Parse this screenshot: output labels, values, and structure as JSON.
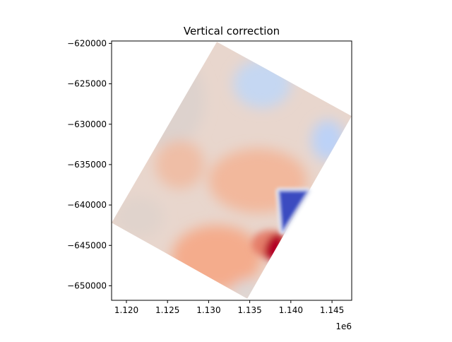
{
  "chart_data": {
    "type": "heatmap",
    "title": "Vertical correction",
    "xlabel": "",
    "ylabel": "",
    "x_offset_label": "1e6",
    "xlim": [
      1.1182,
      1.1474
    ],
    "ylim": [
      -651800,
      -619700
    ],
    "xticks": [
      {
        "value": 1.12,
        "label": "1.120"
      },
      {
        "value": 1.125,
        "label": "1.125"
      },
      {
        "value": 1.13,
        "label": "1.130"
      },
      {
        "value": 1.135,
        "label": "1.135"
      },
      {
        "value": 1.14,
        "label": "1.140"
      },
      {
        "value": 1.145,
        "label": "1.145"
      }
    ],
    "yticks": [
      {
        "value": -620000,
        "label": "−620000"
      },
      {
        "value": -625000,
        "label": "−625000"
      },
      {
        "value": -630000,
        "label": "−630000"
      },
      {
        "value": -635000,
        "label": "−635000"
      },
      {
        "value": -640000,
        "label": "−640000"
      },
      {
        "value": -645000,
        "label": "−645000"
      },
      {
        "value": -650000,
        "label": "−650000"
      }
    ],
    "colormap": "coolwarm",
    "grid": false,
    "footprint_corners": [
      [
        1.131,
        -619800
      ],
      [
        1.1474,
        -629000
      ],
      [
        1.1347,
        -651600
      ],
      [
        1.1182,
        -642200
      ]
    ],
    "regions": [
      {
        "name": "northwest-neutral",
        "x": 1.125,
        "y": -627000,
        "rx": 0.0045,
        "ry": 6000,
        "color": "#ddd2cd"
      },
      {
        "name": "upper-cool",
        "x": 1.1365,
        "y": -625000,
        "rx": 0.0035,
        "ry": 3000,
        "color": "#c5d7f2"
      },
      {
        "name": "east-cool",
        "x": 1.1445,
        "y": -632000,
        "rx": 0.002,
        "ry": 2500,
        "color": "#bcd2f7"
      },
      {
        "name": "west-warm",
        "x": 1.1265,
        "y": -635000,
        "rx": 0.003,
        "ry": 3000,
        "color": "#efbea6"
      },
      {
        "name": "central-warm",
        "x": 1.136,
        "y": -637000,
        "rx": 0.006,
        "ry": 4000,
        "color": "#f2b89c"
      },
      {
        "name": "south-warm",
        "x": 1.131,
        "y": -646500,
        "rx": 0.0055,
        "ry": 4000,
        "color": "#f4ac8c"
      },
      {
        "name": "southwest-neutral",
        "x": 1.1215,
        "y": -641500,
        "rx": 0.003,
        "ry": 2500,
        "color": "#e0d3cc"
      },
      {
        "name": "south-tip-neutral",
        "x": 1.1345,
        "y": -650500,
        "rx": 0.0015,
        "ry": 1200,
        "color": "#dcd7d6"
      }
    ],
    "hotspot_max": {
      "x": 1.138,
      "y": -645200,
      "color": "#b40426"
    },
    "hotspot_min": {
      "corners": [
        [
          1.1386,
          -638300
        ],
        [
          1.142,
          -638300
        ],
        [
          1.139,
          -643200
        ]
      ],
      "color": "#3b4cc0"
    }
  }
}
